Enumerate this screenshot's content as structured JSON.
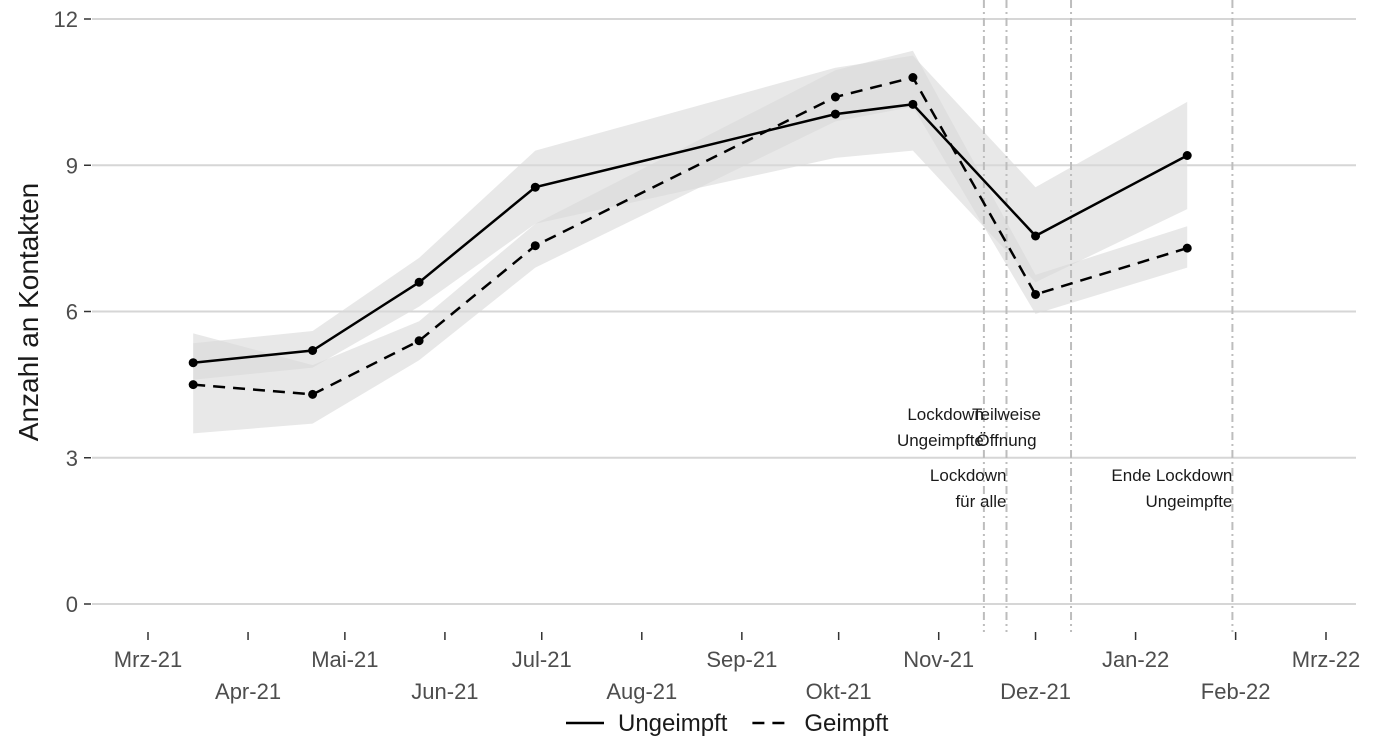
{
  "chart_data": {
    "type": "line",
    "ylabel": "Anzahl an Kontakten",
    "xlabel": "",
    "ylim": [
      0,
      12
    ],
    "yticks": [
      0,
      3,
      6,
      9,
      12
    ],
    "grid": true,
    "legend_position": "bottom",
    "x_axis": {
      "start": "2021-03-01",
      "end": "2022-03-01",
      "ticks": [
        {
          "date": "2021-03-01",
          "label": "Mrz-21"
        },
        {
          "date": "2021-04-01",
          "label": "Apr-21"
        },
        {
          "date": "2021-05-01",
          "label": "Mai-21"
        },
        {
          "date": "2021-06-01",
          "label": "Jun-21"
        },
        {
          "date": "2021-07-01",
          "label": "Jul-21"
        },
        {
          "date": "2021-08-01",
          "label": "Aug-21"
        },
        {
          "date": "2021-09-01",
          "label": "Sep-21"
        },
        {
          "date": "2021-10-01",
          "label": "Okt-21"
        },
        {
          "date": "2021-11-01",
          "label": "Nov-21"
        },
        {
          "date": "2021-12-01",
          "label": "Dez-21"
        },
        {
          "date": "2022-01-01",
          "label": "Jan-22"
        },
        {
          "date": "2022-02-01",
          "label": "Feb-22"
        },
        {
          "date": "2022-03-01",
          "label": "Mrz-22"
        }
      ]
    },
    "series": [
      {
        "name": "Ungeimpft",
        "line_style": "solid",
        "color": "#000000",
        "x": [
          "2021-03-15",
          "2021-04-21",
          "2021-05-24",
          "2021-06-29",
          "2021-09-30",
          "2021-10-24",
          "2021-12-01",
          "2022-01-17"
        ],
        "values": [
          4.95,
          5.2,
          6.6,
          8.55,
          10.05,
          10.25,
          7.55,
          9.2
        ],
        "lower": [
          4.6,
          4.85,
          6.1,
          7.8,
          9.15,
          9.3,
          6.6,
          8.1
        ],
        "upper": [
          5.35,
          5.6,
          7.1,
          9.3,
          11.0,
          11.25,
          8.55,
          10.3
        ]
      },
      {
        "name": "Geimpft",
        "line_style": "dashed",
        "color": "#000000",
        "x": [
          "2021-03-15",
          "2021-04-21",
          "2021-05-24",
          "2021-06-29",
          "2021-09-30",
          "2021-10-24",
          "2021-12-01",
          "2022-01-17"
        ],
        "values": [
          4.5,
          4.3,
          5.4,
          7.35,
          10.4,
          10.8,
          6.35,
          7.3
        ],
        "lower": [
          3.5,
          3.7,
          5.0,
          6.9,
          9.9,
          10.2,
          5.95,
          6.9
        ],
        "upper": [
          5.55,
          4.9,
          5.8,
          7.8,
          10.95,
          11.35,
          6.75,
          7.75
        ]
      }
    ],
    "band_color": "#d9d9d9",
    "events": [
      {
        "date": "2021-11-15",
        "label_lines": [
          "Lockdown",
          "Ungeimpfte"
        ],
        "label_row": 1,
        "anchor": "end"
      },
      {
        "date": "2021-11-22",
        "label_lines": [
          "Lockdown",
          "für alle"
        ],
        "label_row": 2,
        "anchor": "end"
      },
      {
        "date": "2021-11-22",
        "label_lines": [
          "Teilweise",
          "Öffnung"
        ],
        "label_row": 1,
        "anchor": "middle"
      },
      {
        "date": "2021-12-12",
        "label_lines": [],
        "label_row": 0,
        "anchor": "end"
      },
      {
        "date": "2022-01-31",
        "label_lines": [
          "Ende Lockdown",
          "Ungeimpfte"
        ],
        "label_row": 2,
        "anchor": "end"
      }
    ]
  }
}
